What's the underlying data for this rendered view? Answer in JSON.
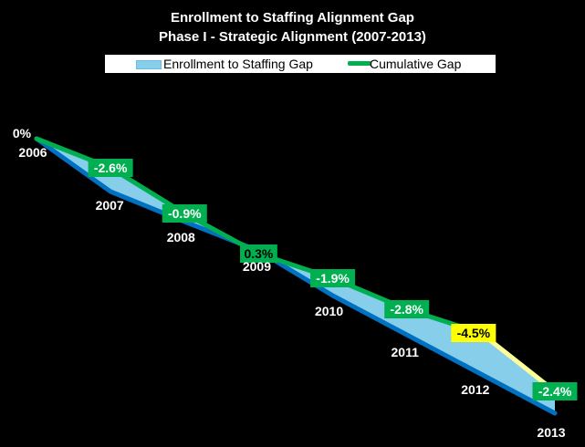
{
  "chart_data": {
    "type": "area",
    "title": "Enrollment to Staffing  Alignment Gap",
    "subtitle": "Phase I - Strategic Alignment (2007-2013)",
    "legend_position": "top",
    "categories": [
      "2006",
      "2007",
      "2008",
      "2009",
      "2010",
      "2011",
      "2012",
      "2013"
    ],
    "series": [
      {
        "name": "Enrollment to Staffing Gap",
        "kind": "area",
        "color": "#87CEEB",
        "values": [
          0,
          -2.6,
          -0.9,
          0.3,
          -1.9,
          -2.8,
          -4.5,
          -2.4
        ]
      },
      {
        "name": "Cumulative Gap",
        "kind": "line",
        "color": "#00b050",
        "values": [
          0,
          -2.6,
          -0.9,
          0.3,
          -1.9,
          -2.8,
          -4.5,
          -2.4
        ]
      }
    ],
    "data_labels": [
      "0%",
      "-2.6%",
      "-0.9%",
      "0.3%",
      "-1.9%",
      "-2.8%",
      "-4.5%",
      "-2.4%"
    ],
    "label_fill": [
      "none",
      "#00b050",
      "#00b050",
      "#00b050",
      "#00b050",
      "#00b050",
      "#ffff00",
      "#00b050"
    ],
    "label_text_color": [
      "#ffffff",
      "#ffffff",
      "#ffffff",
      "#000000",
      "#ffffff",
      "#ffffff",
      "#000000",
      "#ffffff"
    ],
    "baseline_color": "#0070c0",
    "highlight_segment_color": "#ffff99",
    "background": "#000000"
  }
}
